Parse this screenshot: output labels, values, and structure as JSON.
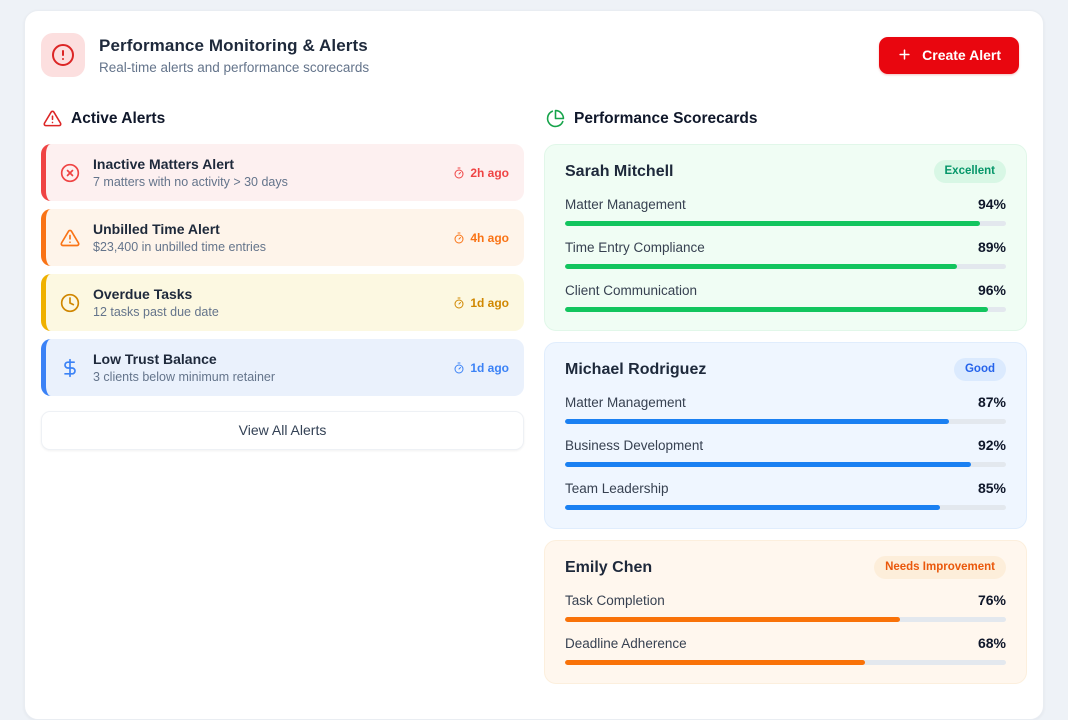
{
  "header": {
    "icon": "alert-circle-icon",
    "title": "Performance Monitoring & Alerts",
    "subtitle": "Real-time alerts and performance scorecards",
    "create_alert_label": "Create Alert",
    "create_alert_color": "#e9060f"
  },
  "active_alerts": {
    "heading": "Active Alerts",
    "heading_icon": "alert-triangle-icon",
    "items": [
      {
        "icon": "x-circle-icon",
        "title": "Inactive Matters Alert",
        "description": "7 matters with no activity > 30 days",
        "time": "2h ago",
        "accent": "#ef4444",
        "background": "#fdf0f0"
      },
      {
        "icon": "alert-triangle-icon",
        "title": "Unbilled Time Alert",
        "description": "$23,400 in unbilled time entries",
        "time": "4h ago",
        "accent": "#f97316",
        "background": "#fef4ea"
      },
      {
        "icon": "clock-icon",
        "title": "Overdue Tasks",
        "description": "12 tasks past due date",
        "time": "1d ago",
        "accent": "#efb100",
        "background": "#fcf8e1"
      },
      {
        "icon": "dollar-sign-icon",
        "title": "Low Trust Balance",
        "description": "3 clients below minimum retainer",
        "time": "1d ago",
        "accent": "#3b82f6",
        "background": "#eaf1fc"
      }
    ],
    "view_all_label": "View All Alerts"
  },
  "scorecards": {
    "heading": "Performance Scorecards",
    "heading_icon": "pie-chart-icon",
    "people": [
      {
        "name": "Sarah Mitchell",
        "badge": "Excellent",
        "accent": "#12c55e",
        "background": "#f0fdf4",
        "metrics": [
          {
            "label": "Matter Management",
            "percent": "94%"
          },
          {
            "label": "Time Entry Compliance",
            "percent": "89%"
          },
          {
            "label": "Client Communication",
            "percent": "96%"
          }
        ]
      },
      {
        "name": "Michael Rodriguez",
        "badge": "Good",
        "accent": "#1a80f2",
        "background": "#eff6ff",
        "metrics": [
          {
            "label": "Matter Management",
            "percent": "87%"
          },
          {
            "label": "Business Development",
            "percent": "92%"
          },
          {
            "label": "Team Leadership",
            "percent": "85%"
          }
        ]
      },
      {
        "name": "Emily Chen",
        "badge": "Needs Improvement",
        "accent": "#f97208",
        "background": "#fff7ee",
        "metrics": [
          {
            "label": "Task Completion",
            "percent": "76%"
          },
          {
            "label": "Deadline Adherence",
            "percent": "68%"
          }
        ]
      }
    ]
  }
}
